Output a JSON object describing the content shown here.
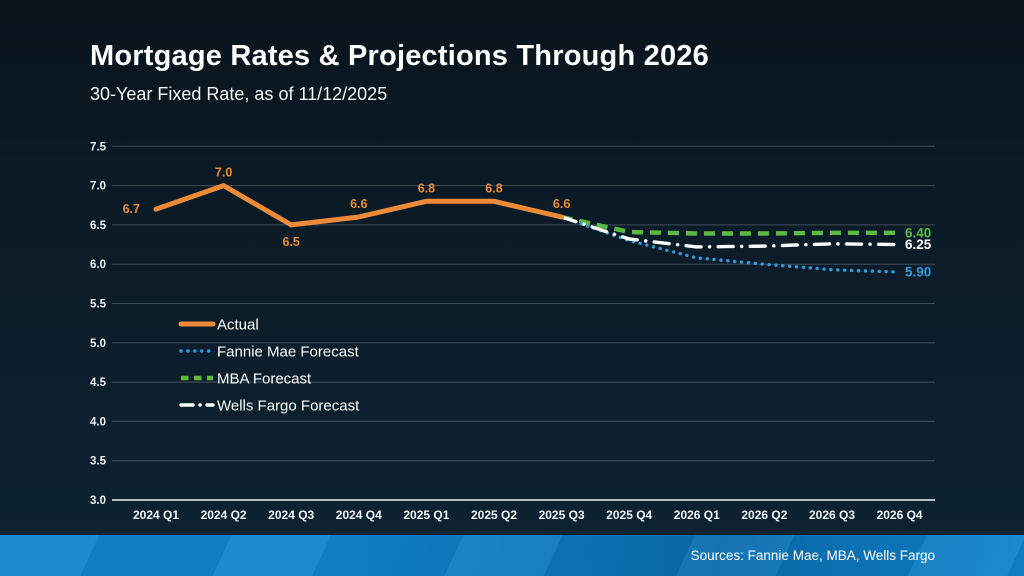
{
  "slide": {
    "title": "Mortgage Rates & Projections Through 2026",
    "subtitle": "30-Year Fixed Rate, as of 11/12/2025",
    "sources": "Sources: Fannie Mae, MBA, Wells Fargo",
    "background_color": "#0b1b26",
    "accent_colors": [
      "#0f84cc",
      "#0a6cae"
    ]
  },
  "chart_data": {
    "type": "line",
    "title": "Mortgage Rates & Projections Through 2026",
    "subtitle": "30-Year Fixed Rate, as of 11/12/2025",
    "xlabel": "",
    "ylabel": "",
    "categories": [
      "2024 Q1",
      "2024 Q2",
      "2024 Q3",
      "2024 Q4",
      "2025 Q1",
      "2025 Q2",
      "2025 Q3",
      "2025 Q4",
      "2026 Q1",
      "2026 Q2",
      "2026 Q3",
      "2026 Q4"
    ],
    "ylim": [
      3.0,
      7.5
    ],
    "ytick_step": 0.5,
    "grid": true,
    "legend_position": "inside-left",
    "draw_order": [
      2,
      1,
      3,
      0
    ],
    "series": [
      {
        "name": "Actual",
        "color": "#EC8A38",
        "style": "solid",
        "values": [
          6.7,
          7.0,
          6.5,
          6.6,
          6.8,
          6.8,
          6.6,
          null,
          null,
          null,
          null,
          null
        ],
        "point_labels": [
          "6.7",
          "7.0",
          "6.5",
          "6.6",
          "6.8",
          "6.8",
          "6.6",
          null,
          null,
          null,
          null,
          null
        ],
        "point_label_positions": [
          "left",
          "above",
          "below",
          "above",
          "above",
          "above",
          "above",
          null,
          null,
          null,
          null,
          null
        ]
      },
      {
        "name": "Fannie Mae Forecast",
        "color": "#2E9BD9",
        "style": "dotted",
        "values": [
          null,
          null,
          null,
          null,
          null,
          null,
          6.6,
          6.3,
          6.08,
          6.0,
          5.93,
          5.9
        ],
        "end_label": "5.90"
      },
      {
        "name": "MBA Forecast",
        "color": "#5BBA3F",
        "style": "dashed",
        "values": [
          null,
          null,
          null,
          null,
          null,
          null,
          6.6,
          6.41,
          6.39,
          6.39,
          6.4,
          6.4
        ],
        "end_label": "6.40"
      },
      {
        "name": "Wells Fargo Forecast",
        "color": "#FFFFFF",
        "style": "dashdot",
        "values": [
          null,
          null,
          null,
          null,
          null,
          null,
          6.6,
          6.32,
          6.22,
          6.23,
          6.26,
          6.25
        ],
        "end_label": "6.25"
      }
    ]
  }
}
